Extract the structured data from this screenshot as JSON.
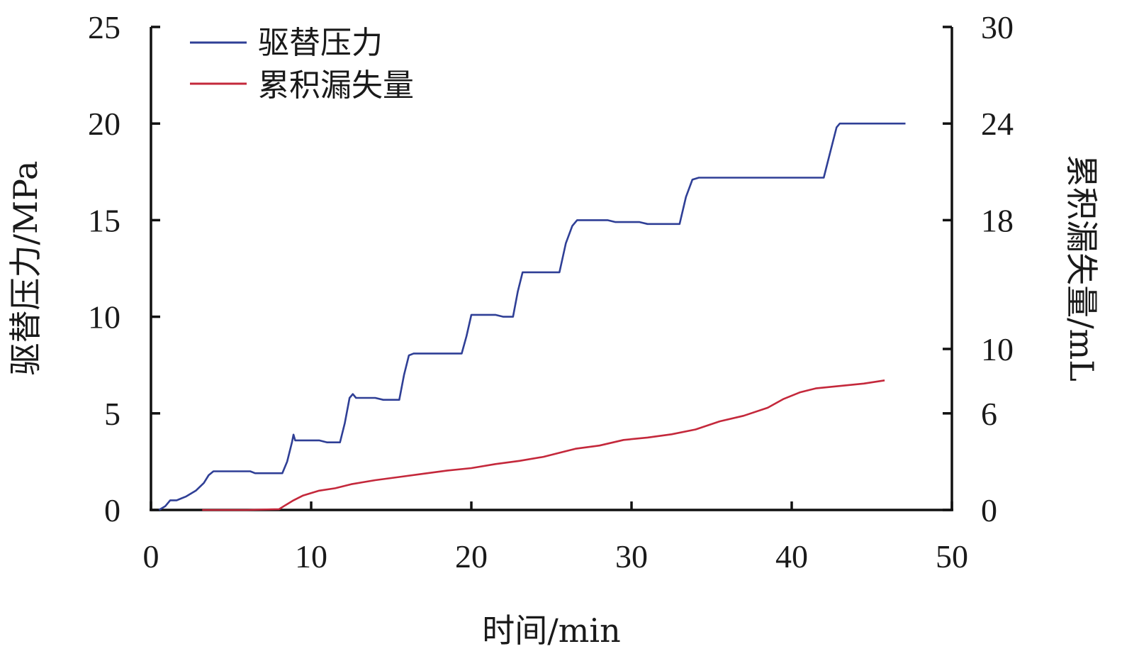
{
  "chart_data": {
    "type": "line",
    "title": "",
    "xlabel": "时间/min",
    "ylabel_left": "驱替压力/MPa",
    "ylabel_right": "累积漏失量/mL",
    "xlim": [
      0,
      50
    ],
    "ylim_left": [
      0,
      25
    ],
    "ylim_right": [
      0,
      30
    ],
    "x_ticks": [
      0,
      10,
      20,
      30,
      40,
      50
    ],
    "y_left_ticks": [
      0,
      5,
      10,
      15,
      20,
      25
    ],
    "y_right_ticks": [
      0,
      6,
      10,
      18,
      24,
      30
    ],
    "grid": false,
    "legend_position": "top-left",
    "series": [
      {
        "name": "驱替压力",
        "axis": "left",
        "color": "#2f3f96",
        "points": [
          [
            0.5,
            0
          ],
          [
            0.9,
            0.2
          ],
          [
            1.2,
            0.5
          ],
          [
            1.6,
            0.5
          ],
          [
            2.2,
            0.7
          ],
          [
            2.8,
            1.0
          ],
          [
            3.3,
            1.4
          ],
          [
            3.6,
            1.8
          ],
          [
            3.9,
            2.0
          ],
          [
            6.2,
            2.0
          ],
          [
            6.5,
            1.9
          ],
          [
            8.2,
            1.9
          ],
          [
            8.5,
            2.5
          ],
          [
            8.8,
            3.5
          ],
          [
            8.9,
            3.9
          ],
          [
            9.0,
            3.6
          ],
          [
            10.5,
            3.6
          ],
          [
            11.0,
            3.5
          ],
          [
            11.8,
            3.5
          ],
          [
            12.1,
            4.5
          ],
          [
            12.4,
            5.8
          ],
          [
            12.6,
            6.0
          ],
          [
            12.8,
            5.8
          ],
          [
            14.0,
            5.8
          ],
          [
            14.5,
            5.7
          ],
          [
            15.5,
            5.7
          ],
          [
            15.8,
            7.0
          ],
          [
            16.1,
            8.0
          ],
          [
            16.4,
            8.1
          ],
          [
            19.4,
            8.1
          ],
          [
            19.7,
            9.0
          ],
          [
            20.0,
            10.1
          ],
          [
            21.5,
            10.1
          ],
          [
            22.0,
            10.0
          ],
          [
            22.6,
            10.0
          ],
          [
            22.9,
            11.3
          ],
          [
            23.2,
            12.3
          ],
          [
            25.5,
            12.3
          ],
          [
            25.9,
            13.8
          ],
          [
            26.3,
            14.7
          ],
          [
            26.6,
            15.0
          ],
          [
            28.5,
            15.0
          ],
          [
            29.0,
            14.9
          ],
          [
            30.5,
            14.9
          ],
          [
            31.0,
            14.8
          ],
          [
            33.0,
            14.8
          ],
          [
            33.4,
            16.2
          ],
          [
            33.8,
            17.1
          ],
          [
            34.2,
            17.2
          ],
          [
            42.0,
            17.2
          ],
          [
            42.4,
            18.5
          ],
          [
            42.8,
            19.8
          ],
          [
            43.0,
            20.0
          ],
          [
            47.1,
            20.0
          ]
        ]
      },
      {
        "name": "累积漏失量",
        "axis": "right",
        "color": "#c4283b",
        "points": [
          [
            3.2,
            0
          ],
          [
            6.0,
            0
          ],
          [
            8.0,
            0.05
          ],
          [
            8.4,
            0.3
          ],
          [
            8.9,
            0.6
          ],
          [
            9.5,
            0.9
          ],
          [
            10.5,
            1.2
          ],
          [
            11.5,
            1.35
          ],
          [
            12.5,
            1.6
          ],
          [
            14.0,
            1.85
          ],
          [
            15.5,
            2.05
          ],
          [
            17.0,
            2.25
          ],
          [
            18.5,
            2.45
          ],
          [
            20.0,
            2.6
          ],
          [
            21.5,
            2.85
          ],
          [
            23.0,
            3.05
          ],
          [
            24.5,
            3.3
          ],
          [
            26.5,
            3.8
          ],
          [
            28.0,
            4.0
          ],
          [
            29.5,
            4.35
          ],
          [
            31.0,
            4.5
          ],
          [
            32.5,
            4.7
          ],
          [
            34.0,
            5.0
          ],
          [
            35.5,
            5.5
          ],
          [
            37.0,
            5.85
          ],
          [
            38.5,
            6.35
          ],
          [
            39.5,
            6.9
          ],
          [
            40.5,
            7.3
          ],
          [
            41.5,
            7.55
          ],
          [
            43.0,
            7.7
          ],
          [
            44.5,
            7.85
          ],
          [
            45.8,
            8.05
          ]
        ]
      }
    ]
  }
}
